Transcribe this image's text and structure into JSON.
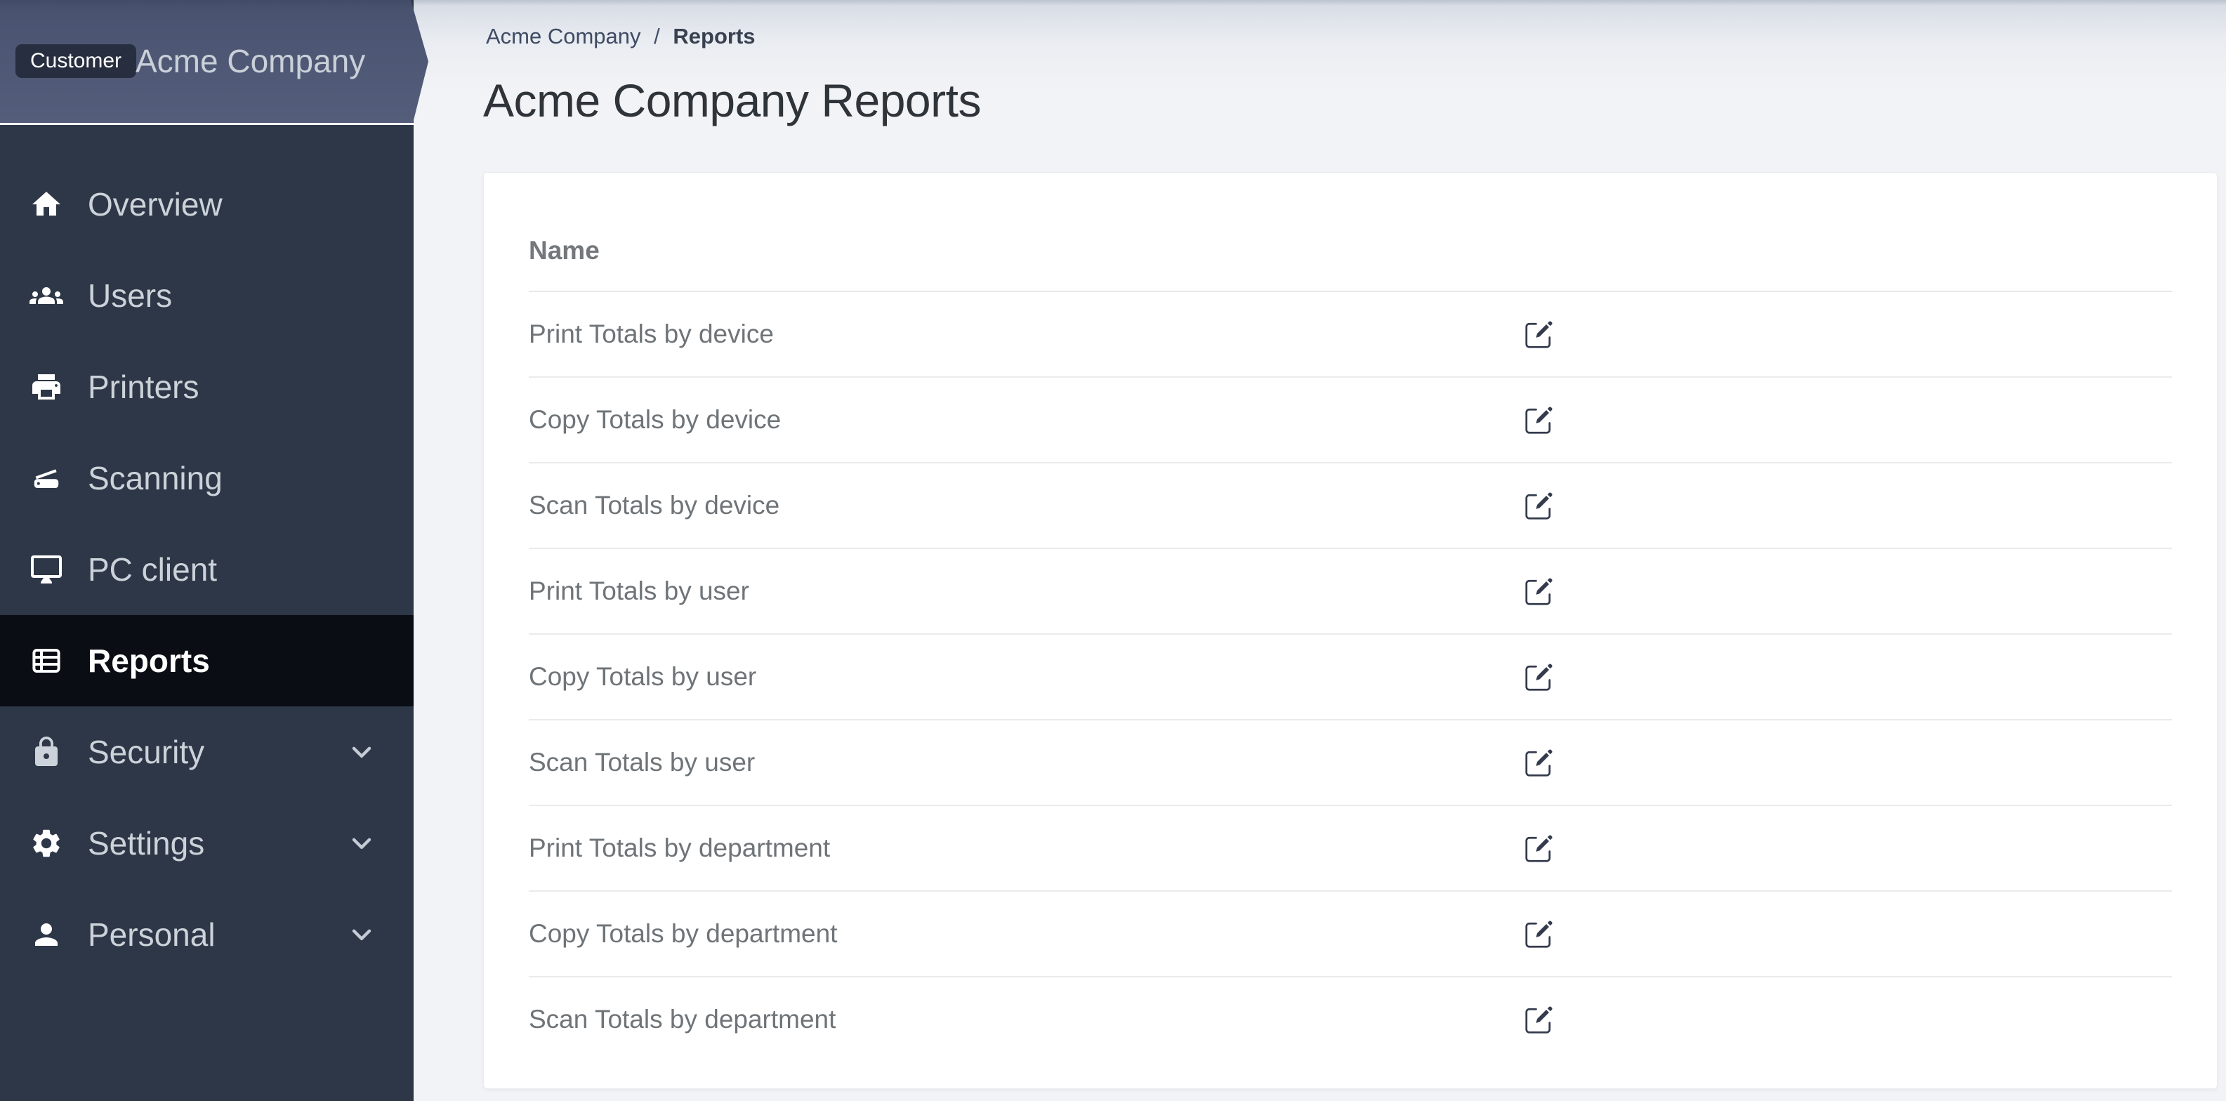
{
  "sidebar": {
    "customer_badge": "Customer",
    "customer_name": "Acme Company",
    "items": [
      {
        "label": "Overview",
        "icon": "home",
        "active": false,
        "expandable": false
      },
      {
        "label": "Users",
        "icon": "users",
        "active": false,
        "expandable": false
      },
      {
        "label": "Printers",
        "icon": "printer",
        "active": false,
        "expandable": false
      },
      {
        "label": "Scanning",
        "icon": "scanner",
        "active": false,
        "expandable": false
      },
      {
        "label": "PC client",
        "icon": "desktop",
        "active": false,
        "expandable": false
      },
      {
        "label": "Reports",
        "icon": "table",
        "active": true,
        "expandable": false
      },
      {
        "label": "Security",
        "icon": "lock",
        "active": false,
        "expandable": true
      },
      {
        "label": "Settings",
        "icon": "gear",
        "active": false,
        "expandable": true
      },
      {
        "label": "Personal",
        "icon": "person",
        "active": false,
        "expandable": true
      }
    ]
  },
  "breadcrumb": {
    "parent": "Acme Company",
    "separator": "/",
    "current": "Reports"
  },
  "page": {
    "title": "Acme Company Reports"
  },
  "table": {
    "header": "Name",
    "rows": [
      "Print Totals by device",
      "Copy Totals by device",
      "Scan Totals by device",
      "Print Totals by user",
      "Copy Totals by user",
      "Scan Totals by user",
      "Print Totals by department",
      "Copy Totals by department",
      "Scan Totals by department"
    ],
    "row_action": "edit"
  },
  "colors": {
    "sidebar_bg": "#2e3747",
    "sidebar_active_bg": "#0a0d13",
    "sidebar_header_top": "#4a5370",
    "sidebar_header_bottom": "#545e7b",
    "badge_bg": "#272e3f",
    "main_bg": "#f2f3f6",
    "card_bg": "#ffffff",
    "row_divider": "#e9ebec",
    "text_primary": "#2f333a",
    "text_row": "#6f7478",
    "breadcrumb_link": "#3e4b64",
    "edit_icon": "#343b4d"
  }
}
